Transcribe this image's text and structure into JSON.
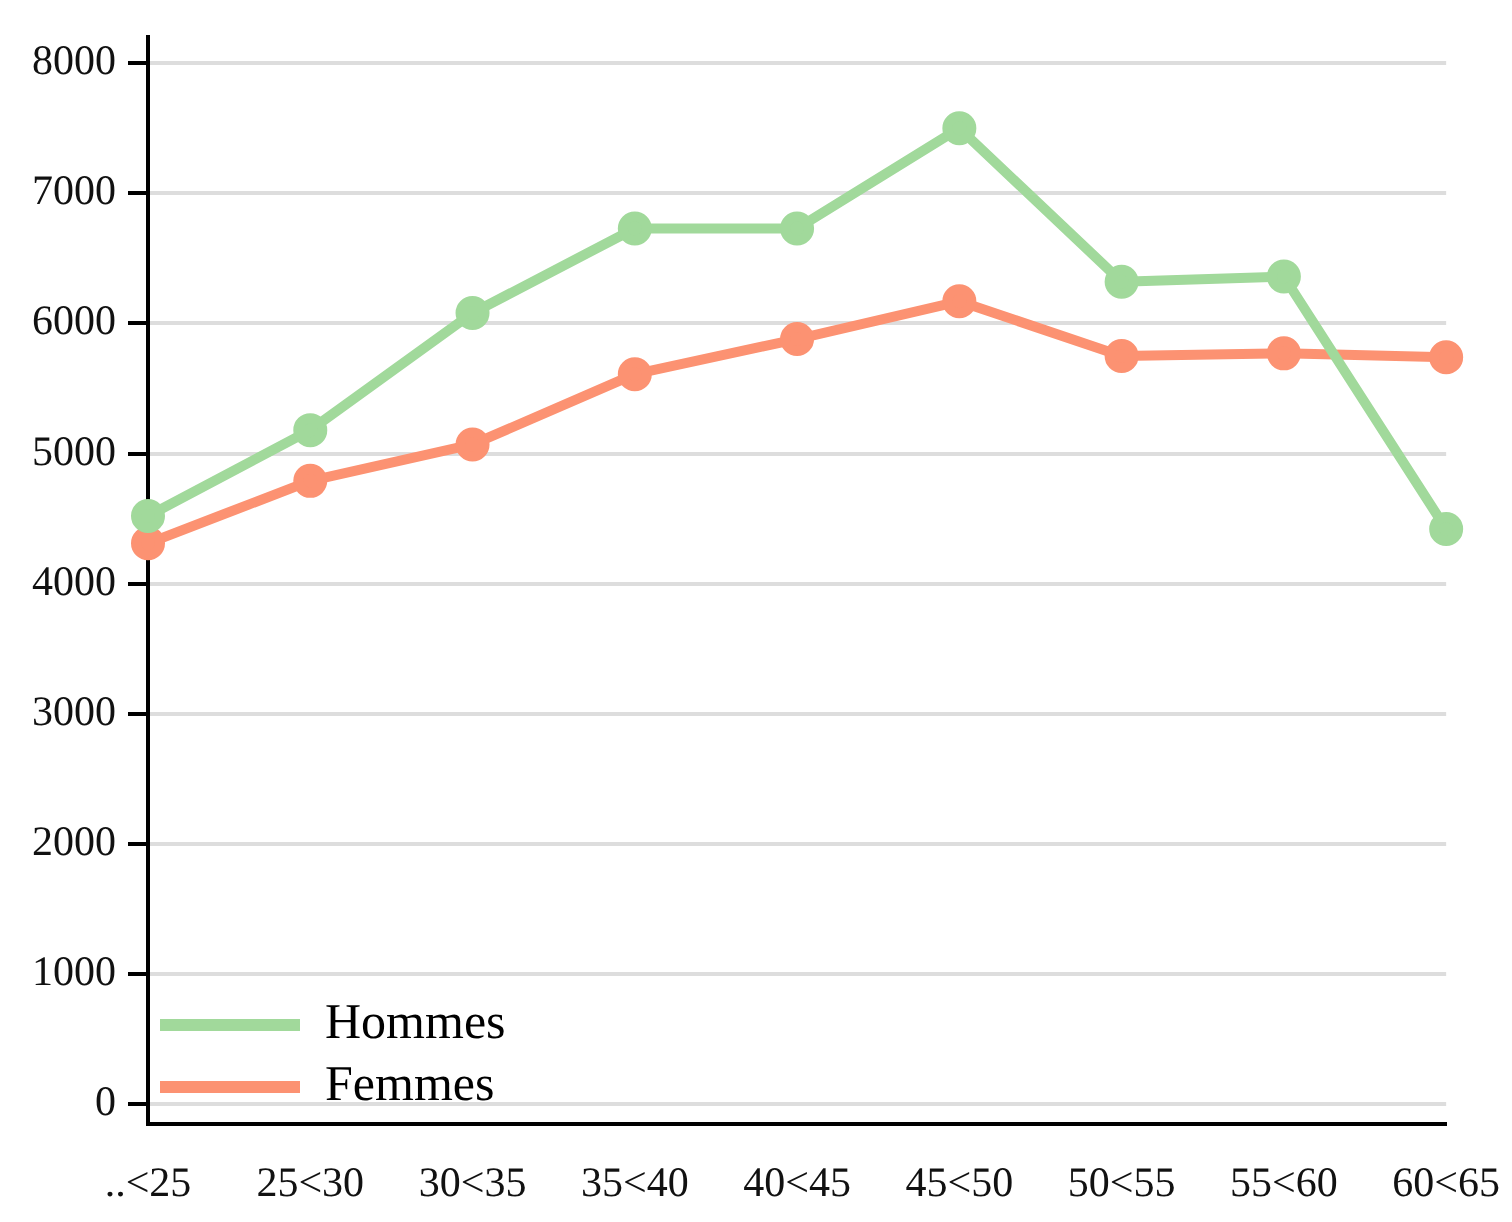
{
  "chart_data": {
    "type": "line",
    "categories": [
      "..<25",
      "25<30",
      "30<35",
      "35<40",
      "40<45",
      "45<50",
      "50<55",
      "55<60",
      "60<65"
    ],
    "series": [
      {
        "name": "Hommes",
        "color": "#a1d99b",
        "values": [
          4520,
          5180,
          6080,
          6730,
          6730,
          7500,
          6320,
          6360,
          4420
        ]
      },
      {
        "name": "Femmes",
        "color": "#fc9272",
        "values": [
          4310,
          4790,
          5070,
          5610,
          5880,
          6170,
          5750,
          5770,
          5740
        ]
      }
    ],
    "ylim": [
      -150,
      8200
    ],
    "yticks": [
      0,
      1000,
      2000,
      3000,
      4000,
      5000,
      6000,
      7000,
      8000
    ],
    "grid": "y",
    "legend": "bottom",
    "marker": "circle",
    "line_style": "solid"
  }
}
